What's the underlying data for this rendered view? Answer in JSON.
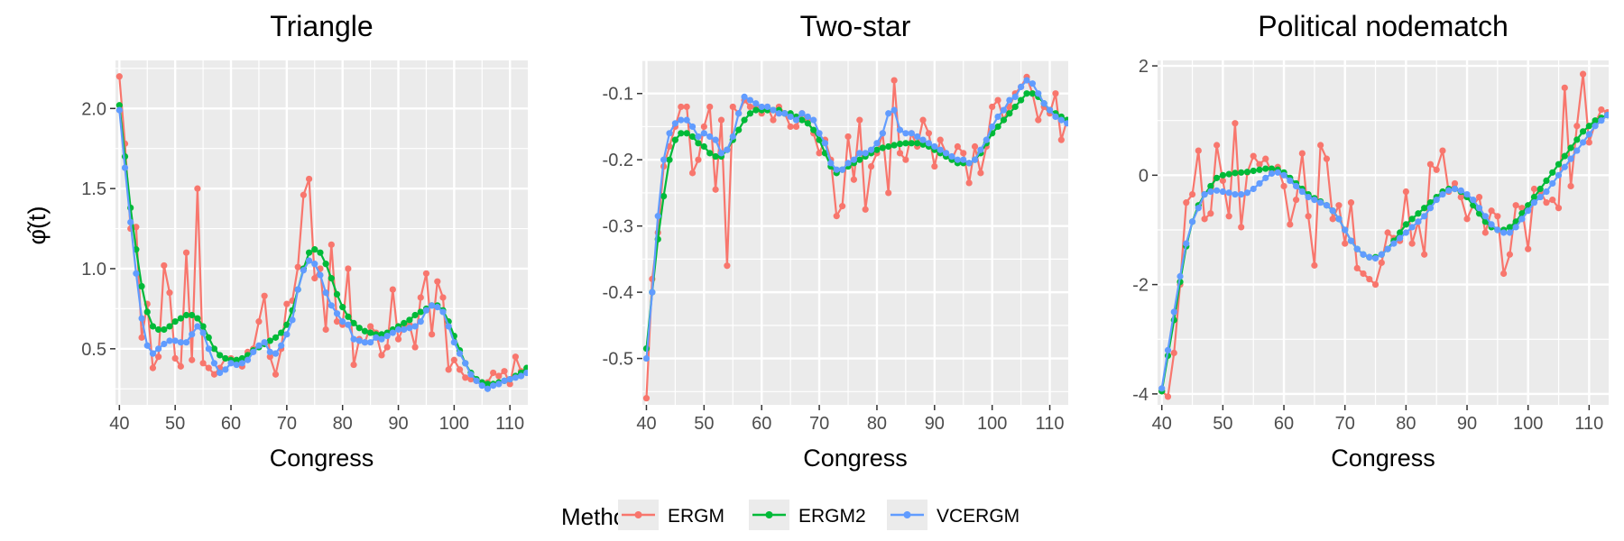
{
  "figure": {
    "ylabel": "φ̂(t)",
    "legend_title": "Method"
  },
  "colors": {
    "ERGM": "#F8766D",
    "ERGM2": "#00BA38",
    "VCERGM": "#619CFF",
    "panel_bg": "#EBEBEB",
    "grid": "#FFFFFF"
  },
  "chart_data": [
    {
      "type": "line",
      "title": "Triangle",
      "xlabel": "Congress",
      "xlim": [
        39.3,
        113.2
      ],
      "ylim": [
        0.15,
        2.3
      ],
      "xticks": [
        40,
        50,
        60,
        70,
        80,
        90,
        100,
        110
      ],
      "yticks": [
        0.5,
        1.0,
        1.5,
        2.0
      ],
      "ytick_labels": [
        "0.5",
        "1.0",
        "1.5",
        "2.0"
      ],
      "x": [
        40,
        41,
        42,
        43,
        44,
        45,
        46,
        47,
        48,
        49,
        50,
        51,
        52,
        53,
        54,
        55,
        56,
        57,
        58,
        59,
        60,
        61,
        62,
        63,
        64,
        65,
        66,
        67,
        68,
        69,
        70,
        71,
        72,
        73,
        74,
        75,
        76,
        77,
        78,
        79,
        80,
        81,
        82,
        83,
        84,
        85,
        86,
        87,
        88,
        89,
        90,
        91,
        92,
        93,
        94,
        95,
        96,
        97,
        98,
        99,
        100,
        101,
        102,
        103,
        104,
        105,
        106,
        107,
        108,
        109,
        110,
        111,
        112,
        113
      ],
      "series": [
        {
          "name": "ERGM",
          "values": [
            2.2,
            1.78,
            1.25,
            1.26,
            0.57,
            0.78,
            0.38,
            0.45,
            1.02,
            0.85,
            0.44,
            0.39,
            1.1,
            0.43,
            1.5,
            0.41,
            0.38,
            0.34,
            0.38,
            0.44,
            0.44,
            0.42,
            0.39,
            0.48,
            0.5,
            0.67,
            0.83,
            0.45,
            0.34,
            0.5,
            0.78,
            0.8,
            1.01,
            1.46,
            1.56,
            0.94,
            1.0,
            0.62,
            1.15,
            0.67,
            0.65,
            1.0,
            0.4,
            0.56,
            0.54,
            0.64,
            0.6,
            0.46,
            0.51,
            0.87,
            0.56,
            0.64,
            0.65,
            0.51,
            0.82,
            0.97,
            0.59,
            0.92,
            0.82,
            0.37,
            0.43,
            0.37,
            0.32,
            0.31,
            0.3,
            0.29,
            0.29,
            0.35,
            0.33,
            0.36,
            0.28,
            0.45,
            0.36,
            0.35
          ]
        },
        {
          "name": "ERGM2",
          "values": [
            2.02,
            1.7,
            1.38,
            1.12,
            0.89,
            0.73,
            0.64,
            0.62,
            0.62,
            0.64,
            0.67,
            0.69,
            0.71,
            0.71,
            0.69,
            0.64,
            0.57,
            0.5,
            0.46,
            0.44,
            0.43,
            0.43,
            0.44,
            0.46,
            0.49,
            0.51,
            0.53,
            0.55,
            0.57,
            0.6,
            0.65,
            0.74,
            0.87,
            1.0,
            1.1,
            1.12,
            1.1,
            1.03,
            0.94,
            0.84,
            0.76,
            0.7,
            0.66,
            0.63,
            0.61,
            0.6,
            0.59,
            0.59,
            0.6,
            0.62,
            0.64,
            0.66,
            0.68,
            0.71,
            0.73,
            0.75,
            0.77,
            0.77,
            0.74,
            0.67,
            0.58,
            0.49,
            0.41,
            0.35,
            0.31,
            0.29,
            0.28,
            0.28,
            0.29,
            0.3,
            0.31,
            0.33,
            0.35,
            0.38
          ]
        },
        {
          "name": "VCERGM",
          "values": [
            1.99,
            1.63,
            1.29,
            0.97,
            0.69,
            0.52,
            0.47,
            0.5,
            0.53,
            0.55,
            0.55,
            0.54,
            0.54,
            0.59,
            0.64,
            0.6,
            0.5,
            0.41,
            0.35,
            0.37,
            0.41,
            0.4,
            0.41,
            0.43,
            0.48,
            0.52,
            0.54,
            0.48,
            0.47,
            0.52,
            0.59,
            0.68,
            0.87,
            0.99,
            1.05,
            1.03,
            0.96,
            0.85,
            0.77,
            0.72,
            0.67,
            0.65,
            0.56,
            0.55,
            0.54,
            0.54,
            0.57,
            0.56,
            0.58,
            0.6,
            0.62,
            0.62,
            0.63,
            0.64,
            0.67,
            0.74,
            0.77,
            0.76,
            0.73,
            0.64,
            0.54,
            0.47,
            0.41,
            0.34,
            0.3,
            0.27,
            0.25,
            0.27,
            0.28,
            0.3,
            0.31,
            0.32,
            0.33,
            0.35
          ]
        }
      ]
    },
    {
      "type": "line",
      "title": "Two-star",
      "xlabel": "Congress",
      "xlim": [
        39.3,
        113.2
      ],
      "ylim": [
        -0.57,
        -0.05
      ],
      "xticks": [
        40,
        50,
        60,
        70,
        80,
        90,
        100,
        110
      ],
      "yticks": [
        -0.5,
        -0.4,
        -0.3,
        -0.2,
        -0.1
      ],
      "ytick_labels": [
        "-0.5",
        "-0.4",
        "-0.3",
        "-0.2",
        "-0.1"
      ],
      "x": [
        40,
        41,
        42,
        43,
        44,
        45,
        46,
        47,
        48,
        49,
        50,
        51,
        52,
        53,
        54,
        55,
        56,
        57,
        58,
        59,
        60,
        61,
        62,
        63,
        64,
        65,
        66,
        67,
        68,
        69,
        70,
        71,
        72,
        73,
        74,
        75,
        76,
        77,
        78,
        79,
        80,
        81,
        82,
        83,
        84,
        85,
        86,
        87,
        88,
        89,
        90,
        91,
        92,
        93,
        94,
        95,
        96,
        97,
        98,
        99,
        100,
        101,
        102,
        103,
        104,
        105,
        106,
        107,
        108,
        109,
        110,
        111,
        112,
        113
      ],
      "series": [
        {
          "name": "ERGM",
          "values": [
            -0.56,
            -0.38,
            -0.31,
            -0.21,
            -0.18,
            -0.15,
            -0.12,
            -0.12,
            -0.22,
            -0.2,
            -0.15,
            -0.12,
            -0.245,
            -0.14,
            -0.36,
            -0.12,
            -0.13,
            -0.11,
            -0.12,
            -0.12,
            -0.13,
            -0.12,
            -0.14,
            -0.12,
            -0.13,
            -0.15,
            -0.15,
            -0.13,
            -0.14,
            -0.16,
            -0.19,
            -0.17,
            -0.2,
            -0.285,
            -0.27,
            -0.165,
            -0.23,
            -0.14,
            -0.275,
            -0.21,
            -0.19,
            -0.16,
            -0.25,
            -0.08,
            -0.19,
            -0.2,
            -0.16,
            -0.18,
            -0.14,
            -0.16,
            -0.21,
            -0.17,
            -0.19,
            -0.2,
            -0.18,
            -0.19,
            -0.235,
            -0.18,
            -0.22,
            -0.18,
            -0.12,
            -0.11,
            -0.14,
            -0.12,
            -0.1,
            -0.09,
            -0.075,
            -0.1,
            -0.14,
            -0.12,
            -0.13,
            -0.1,
            -0.17,
            -0.14
          ]
        },
        {
          "name": "ERGM2",
          "values": [
            -0.485,
            -0.4,
            -0.32,
            -0.255,
            -0.2,
            -0.17,
            -0.16,
            -0.16,
            -0.165,
            -0.175,
            -0.18,
            -0.19,
            -0.195,
            -0.195,
            -0.185,
            -0.17,
            -0.155,
            -0.14,
            -0.13,
            -0.125,
            -0.125,
            -0.125,
            -0.125,
            -0.125,
            -0.13,
            -0.13,
            -0.135,
            -0.14,
            -0.145,
            -0.155,
            -0.17,
            -0.19,
            -0.21,
            -0.22,
            -0.215,
            -0.21,
            -0.205,
            -0.2,
            -0.195,
            -0.19,
            -0.185,
            -0.182,
            -0.18,
            -0.178,
            -0.176,
            -0.175,
            -0.175,
            -0.175,
            -0.177,
            -0.18,
            -0.185,
            -0.19,
            -0.195,
            -0.2,
            -0.205,
            -0.205,
            -0.205,
            -0.2,
            -0.19,
            -0.175,
            -0.16,
            -0.15,
            -0.14,
            -0.13,
            -0.12,
            -0.11,
            -0.1,
            -0.1,
            -0.105,
            -0.115,
            -0.125,
            -0.13,
            -0.135,
            -0.14
          ]
        },
        {
          "name": "VCERGM",
          "values": [
            -0.5,
            -0.4,
            -0.285,
            -0.2,
            -0.16,
            -0.145,
            -0.14,
            -0.14,
            -0.15,
            -0.165,
            -0.16,
            -0.165,
            -0.17,
            -0.19,
            -0.185,
            -0.165,
            -0.13,
            -0.105,
            -0.11,
            -0.115,
            -0.12,
            -0.12,
            -0.125,
            -0.13,
            -0.13,
            -0.135,
            -0.14,
            -0.13,
            -0.135,
            -0.14,
            -0.16,
            -0.175,
            -0.205,
            -0.215,
            -0.215,
            -0.205,
            -0.2,
            -0.19,
            -0.19,
            -0.185,
            -0.175,
            -0.16,
            -0.13,
            -0.125,
            -0.155,
            -0.16,
            -0.16,
            -0.165,
            -0.17,
            -0.175,
            -0.18,
            -0.185,
            -0.19,
            -0.195,
            -0.2,
            -0.2,
            -0.205,
            -0.2,
            -0.185,
            -0.17,
            -0.15,
            -0.135,
            -0.125,
            -0.11,
            -0.105,
            -0.09,
            -0.08,
            -0.085,
            -0.1,
            -0.115,
            -0.125,
            -0.135,
            -0.14,
            -0.145
          ]
        }
      ]
    },
    {
      "type": "line",
      "title": "Political nodematch",
      "xlabel": "Congress",
      "xlim": [
        39.3,
        113.2
      ],
      "ylim": [
        -4.2,
        2.1
      ],
      "xticks": [
        40,
        50,
        60,
        70,
        80,
        90,
        100,
        110
      ],
      "yticks": [
        -4,
        -2,
        0,
        2
      ],
      "ytick_labels": [
        "-4",
        "-2",
        "0",
        "2"
      ],
      "x": [
        40,
        41,
        42,
        43,
        44,
        45,
        46,
        47,
        48,
        49,
        50,
        51,
        52,
        53,
        54,
        55,
        56,
        57,
        58,
        59,
        60,
        61,
        62,
        63,
        64,
        65,
        66,
        67,
        68,
        69,
        70,
        71,
        72,
        73,
        74,
        75,
        76,
        77,
        78,
        79,
        80,
        81,
        82,
        83,
        84,
        85,
        86,
        87,
        88,
        89,
        90,
        91,
        92,
        93,
        94,
        95,
        96,
        97,
        98,
        99,
        100,
        101,
        102,
        103,
        104,
        105,
        106,
        107,
        108,
        109,
        110,
        111,
        112,
        113
      ],
      "series": [
        {
          "name": "ERGM",
          "values": [
            -3.95,
            -4.05,
            -3.25,
            -2.0,
            -0.5,
            -0.35,
            0.45,
            -0.8,
            -0.7,
            0.55,
            -0.1,
            -0.75,
            0.95,
            -0.95,
            0.05,
            0.35,
            0.2,
            0.3,
            0.05,
            0.15,
            -0.2,
            -0.9,
            -0.45,
            0.4,
            -0.75,
            -1.65,
            0.55,
            0.3,
            -0.8,
            -0.55,
            -1.25,
            -0.5,
            -1.7,
            -1.8,
            -1.9,
            -2.0,
            -1.6,
            -1.05,
            -1.15,
            -1.2,
            -0.3,
            -1.25,
            -0.85,
            -1.45,
            0.2,
            0.1,
            0.45,
            -0.3,
            -0.15,
            -0.4,
            -0.8,
            -0.55,
            -0.4,
            -1.05,
            -0.65,
            -0.75,
            -1.8,
            -1.45,
            -0.55,
            -0.6,
            -1.35,
            -0.25,
            -0.3,
            -0.5,
            -0.45,
            -0.6,
            1.6,
            -0.2,
            0.9,
            1.85,
            0.6,
            0.95,
            1.2,
            1.15
          ]
        },
        {
          "name": "ERGM2",
          "values": [
            -3.95,
            -3.3,
            -2.65,
            -1.95,
            -1.3,
            -0.85,
            -0.55,
            -0.35,
            -0.2,
            -0.05,
            0.0,
            0.02,
            0.04,
            0.05,
            0.06,
            0.08,
            0.1,
            0.12,
            0.12,
            0.1,
            0.05,
            -0.05,
            -0.15,
            -0.25,
            -0.35,
            -0.42,
            -0.48,
            -0.55,
            -0.65,
            -0.8,
            -1.0,
            -1.2,
            -1.35,
            -1.45,
            -1.5,
            -1.5,
            -1.45,
            -1.35,
            -1.2,
            -1.05,
            -0.9,
            -0.8,
            -0.7,
            -0.6,
            -0.5,
            -0.4,
            -0.3,
            -0.25,
            -0.25,
            -0.3,
            -0.4,
            -0.55,
            -0.7,
            -0.85,
            -0.95,
            -1.0,
            -1.0,
            -0.95,
            -0.85,
            -0.7,
            -0.55,
            -0.4,
            -0.25,
            -0.1,
            0.05,
            0.2,
            0.35,
            0.5,
            0.65,
            0.8,
            0.9,
            1.0,
            1.05,
            1.1
          ]
        },
        {
          "name": "VCERGM",
          "values": [
            -3.9,
            -3.2,
            -2.5,
            -1.85,
            -1.25,
            -0.85,
            -0.6,
            -0.35,
            -0.3,
            -0.28,
            -0.3,
            -0.32,
            -0.35,
            -0.35,
            -0.32,
            -0.25,
            -0.15,
            -0.05,
            0.03,
            0.05,
            0.0,
            -0.1,
            -0.2,
            -0.3,
            -0.4,
            -0.45,
            -0.5,
            -0.55,
            -0.65,
            -0.8,
            -1.0,
            -1.2,
            -1.35,
            -1.45,
            -1.5,
            -1.52,
            -1.45,
            -1.35,
            -1.25,
            -1.15,
            -1.05,
            -0.95,
            -0.85,
            -0.75,
            -0.6,
            -0.45,
            -0.35,
            -0.28,
            -0.25,
            -0.28,
            -0.35,
            -0.45,
            -0.6,
            -0.75,
            -0.9,
            -1.0,
            -1.05,
            -1.05,
            -0.95,
            -0.8,
            -0.65,
            -0.5,
            -0.4,
            -0.3,
            -0.15,
            0.0,
            0.15,
            0.3,
            0.45,
            0.6,
            0.75,
            0.9,
            1.0,
            1.1
          ]
        }
      ]
    }
  ]
}
